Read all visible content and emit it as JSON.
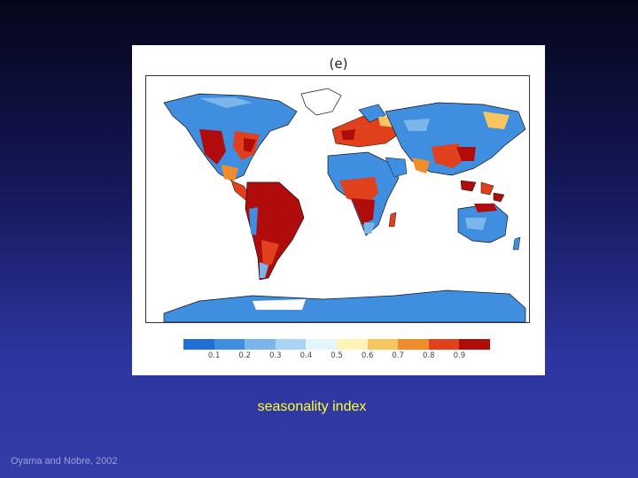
{
  "slide": {
    "panel_label": "(e)",
    "caption": "seasonality index",
    "citation": "Oyama and Nobre, 2002"
  },
  "colorbar": {
    "colors": [
      "#1f6fd6",
      "#3f8ee0",
      "#7ab5ec",
      "#a9d4f3",
      "#e2f6fb",
      "#fff4b8",
      "#f8c560",
      "#f08c2c",
      "#e0401c",
      "#b00c0c"
    ],
    "ticks": [
      "0.1",
      "0.2",
      "0.3",
      "0.4",
      "0.5",
      "0.6",
      "0.7",
      "0.8",
      "0.9"
    ]
  },
  "colors": {
    "ocean": "#ffffff",
    "coastline": "#111111",
    "low_seasonality": "#2f82dd",
    "high_seasonality": "#b00c0c"
  }
}
